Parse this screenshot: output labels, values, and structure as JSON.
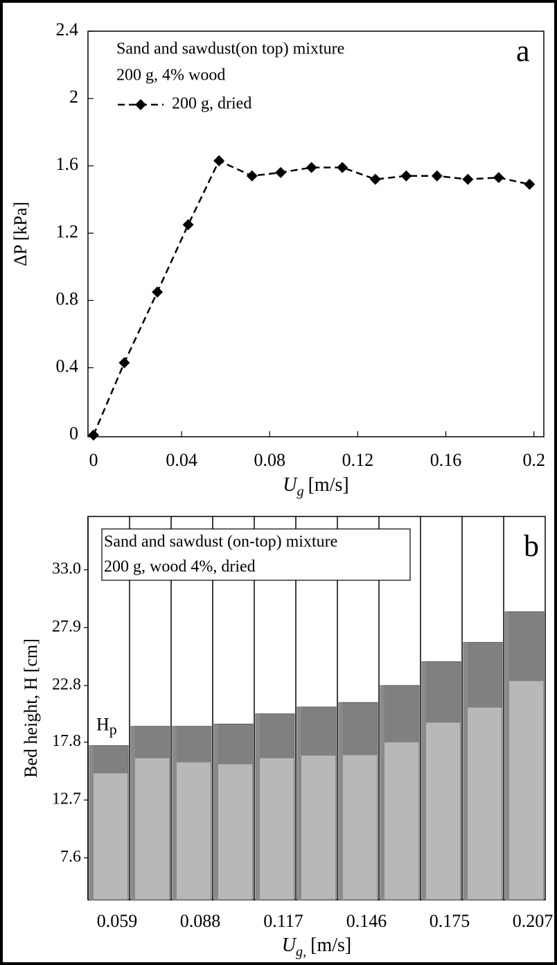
{
  "chart_data": [
    {
      "type": "line",
      "annotations": [
        "Sand and sawdust(on top) mixture",
        "200 g, 4% wood"
      ],
      "panel_label": "a",
      "x_label": {
        "main": "U",
        "sub": "g",
        "unit": "[m/s]"
      },
      "y_label": "ΔP [kPa]",
      "x": [
        0,
        0.014,
        0.029,
        0.043,
        0.057,
        0.072,
        0.085,
        0.099,
        0.113,
        0.128,
        0.142,
        0.156,
        0.17,
        0.184,
        0.198
      ],
      "series": [
        {
          "name": "200 g, dried",
          "color": "#000000",
          "dashed": true,
          "marker": "diamond",
          "values": [
            0,
            0.43,
            0.85,
            1.25,
            1.63,
            1.54,
            1.56,
            1.59,
            1.59,
            1.52,
            1.54,
            1.54,
            1.52,
            1.53,
            1.49
          ]
        }
      ],
      "xlim": [
        -0.0025,
        0.2045
      ],
      "ylim": [
        -0.01,
        2.4
      ],
      "xticks": [
        0,
        0.04,
        0.08,
        0.12,
        0.16,
        0.2
      ],
      "yticks": [
        0,
        0.4,
        0.8,
        1.2,
        1.6,
        2,
        2.4
      ],
      "grid": false
    },
    {
      "type": "bar",
      "annotations": [
        "Sand and sawdust (on-top) mixture",
        "200 g, wood 4%, dried"
      ],
      "panel_label": "b",
      "marker_label": {
        "main": "H",
        "sub": "p"
      },
      "x_label": {
        "main": "U",
        "sub": "g,",
        "unit": "[m/s]"
      },
      "y_label": "Bed height, H [cm]",
      "categories": [
        "0.059",
        null,
        "0.088",
        null,
        "0.117",
        null,
        "0.146",
        null,
        "0.175",
        null,
        "0.207"
      ],
      "values": [
        17.5,
        19.2,
        19.2,
        19.4,
        20.3,
        20.9,
        21.3,
        22.8,
        24.9,
        26.6,
        29.3
      ],
      "color": "#b8b8b8",
      "ylim": [
        3.9,
        37.7
      ],
      "yticks": [
        7.6,
        12.7,
        17.8,
        22.8,
        27.9,
        {
          "value": 33,
          "label": "33.0"
        }
      ],
      "grid": false
    }
  ]
}
